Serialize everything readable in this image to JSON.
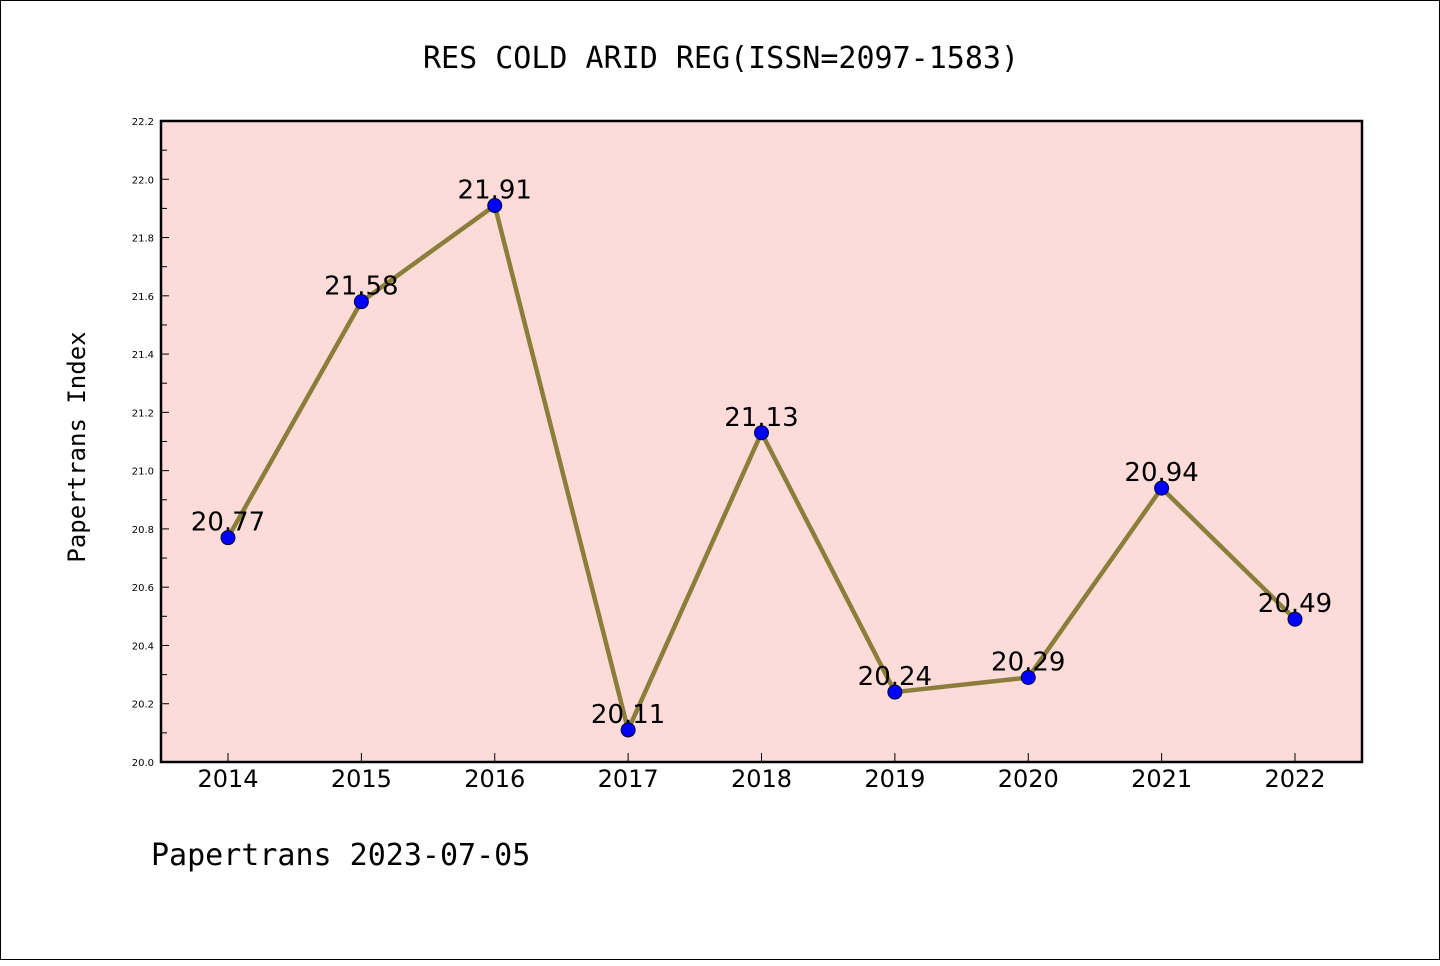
{
  "chart_data": {
    "type": "line",
    "title": "RES COLD ARID REG(ISSN=2097-1583)",
    "ylabel": "Papertrans Index",
    "xlabel": "",
    "categories": [
      "2014",
      "2015",
      "2016",
      "2017",
      "2018",
      "2019",
      "2020",
      "2021",
      "2022"
    ],
    "series": [
      {
        "values": [
          20.77,
          21.58,
          21.91,
          20.11,
          21.13,
          20.24,
          20.29,
          20.94,
          20.49
        ],
        "data_labels": [
          "20.77",
          "21.58",
          "21.91",
          "20.11",
          "21.13",
          "20.24",
          "20.29",
          "20.94",
          "20.49"
        ],
        "line_color": "#8B7D3A",
        "marker_color": "#0000FF"
      }
    ],
    "ylim": [
      20.0,
      22.2
    ],
    "yticks": [
      "20.0",
      "20.2",
      "20.4",
      "20.6",
      "20.8",
      "21.0",
      "21.2",
      "21.4",
      "21.6",
      "21.8",
      "22.0",
      "22.2"
    ],
    "plot_background": "#FDDBD8",
    "grid": false,
    "legend": "none"
  },
  "footer": {
    "text": "Papertrans 2023-07-05"
  }
}
